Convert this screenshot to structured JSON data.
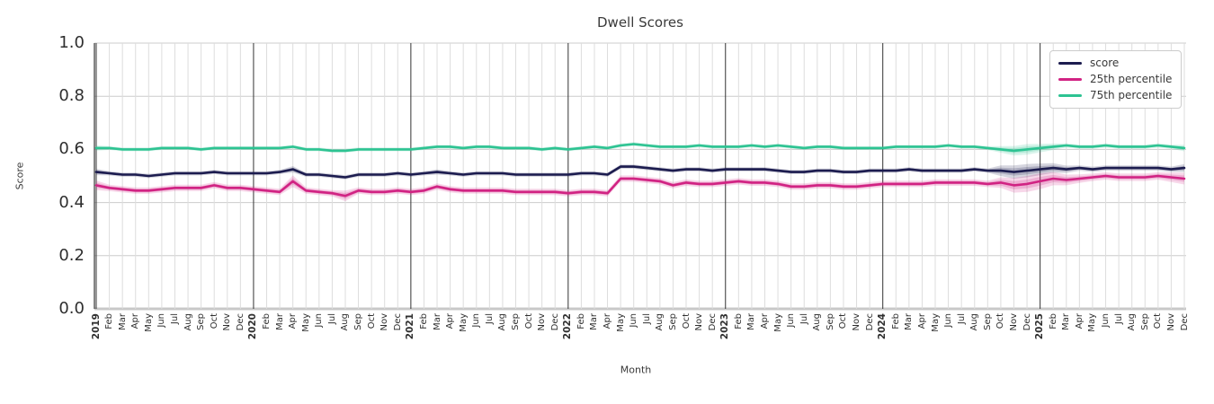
{
  "chart": {
    "title": "Dwell Scores",
    "xlabel": "Month",
    "ylabel": "Score"
  },
  "legend": {
    "items": [
      {
        "label": "score",
        "color": "#1c1c4f"
      },
      {
        "label": "25th percentile",
        "color": "#d12383"
      },
      {
        "label": "75th percentile",
        "color": "#2dc392"
      }
    ]
  },
  "chart_data": {
    "type": "line",
    "title": "Dwell Scores",
    "xlabel": "Month",
    "ylabel": "Score",
    "ylim": [
      0.0,
      1.0
    ],
    "yticks": [
      0.0,
      0.2,
      0.4,
      0.6,
      0.8,
      1.0
    ],
    "grid": true,
    "legend_position": "upper right",
    "x_labels": [
      "2019",
      "Feb",
      "Mar",
      "Apr",
      "May",
      "Jun",
      "Jul",
      "Aug",
      "Sep",
      "Oct",
      "Nov",
      "Dec",
      "2020",
      "Feb",
      "Mar",
      "Apr",
      "May",
      "Jun",
      "Jul",
      "Aug",
      "Sep",
      "Oct",
      "Nov",
      "Dec",
      "2021",
      "Feb",
      "Mar",
      "Apr",
      "May",
      "Jun",
      "Jul",
      "Aug",
      "Sep",
      "Oct",
      "Nov",
      "Dec",
      "2022",
      "Feb",
      "Mar",
      "Apr",
      "May",
      "Jun",
      "Jul",
      "Aug",
      "Sep",
      "Oct",
      "Nov",
      "Dec",
      "2023",
      "Feb",
      "Mar",
      "Apr",
      "May",
      "Jun",
      "Jul",
      "Aug",
      "Sep",
      "Oct",
      "Nov",
      "Dec",
      "2024",
      "Feb",
      "Mar",
      "Apr",
      "May",
      "Jun",
      "Jul",
      "Aug",
      "Sep",
      "Oct",
      "Nov",
      "Dec",
      "2025",
      "Feb",
      "Mar",
      "Apr",
      "May",
      "Jun",
      "Jul",
      "Aug",
      "Sep",
      "Oct",
      "Nov",
      "Dec"
    ],
    "series": [
      {
        "name": "score",
        "color": "#1c1c4f",
        "values": [
          0.515,
          0.51,
          0.505,
          0.505,
          0.5,
          0.505,
          0.51,
          0.51,
          0.51,
          0.515,
          0.51,
          0.51,
          0.51,
          0.51,
          0.515,
          0.525,
          0.505,
          0.505,
          0.5,
          0.495,
          0.505,
          0.505,
          0.505,
          0.51,
          0.505,
          0.51,
          0.515,
          0.51,
          0.505,
          0.51,
          0.51,
          0.51,
          0.505,
          0.505,
          0.505,
          0.505,
          0.505,
          0.51,
          0.51,
          0.505,
          0.535,
          0.535,
          0.53,
          0.525,
          0.52,
          0.525,
          0.525,
          0.52,
          0.525,
          0.525,
          0.525,
          0.525,
          0.52,
          0.515,
          0.515,
          0.52,
          0.52,
          0.515,
          0.515,
          0.52,
          0.52,
          0.52,
          0.525,
          0.52,
          0.52,
          0.52,
          0.52,
          0.525,
          0.52,
          0.52,
          0.515,
          0.52,
          0.525,
          0.53,
          0.525,
          0.53,
          0.525,
          0.53,
          0.53,
          0.53,
          0.53,
          0.53,
          0.525,
          0.53
        ],
        "band": [
          0.012,
          0.008,
          0.008,
          0.008,
          0.008,
          0.008,
          0.008,
          0.008,
          0.008,
          0.008,
          0.008,
          0.008,
          0.008,
          0.008,
          0.008,
          0.012,
          0.008,
          0.008,
          0.008,
          0.008,
          0.008,
          0.008,
          0.008,
          0.008,
          0.008,
          0.008,
          0.01,
          0.008,
          0.008,
          0.008,
          0.008,
          0.008,
          0.008,
          0.008,
          0.008,
          0.008,
          0.008,
          0.008,
          0.008,
          0.008,
          0.008,
          0.008,
          0.008,
          0.008,
          0.008,
          0.008,
          0.008,
          0.008,
          0.008,
          0.008,
          0.008,
          0.008,
          0.008,
          0.008,
          0.008,
          0.008,
          0.008,
          0.008,
          0.008,
          0.008,
          0.008,
          0.008,
          0.008,
          0.008,
          0.008,
          0.008,
          0.008,
          0.008,
          0.008,
          0.02,
          0.025,
          0.025,
          0.022,
          0.018,
          0.014,
          0.01,
          0.01,
          0.01,
          0.01,
          0.01,
          0.01,
          0.01,
          0.01,
          0.015
        ]
      },
      {
        "name": "25th percentile",
        "color": "#d12383",
        "values": [
          0.465,
          0.455,
          0.45,
          0.445,
          0.445,
          0.45,
          0.455,
          0.455,
          0.455,
          0.465,
          0.455,
          0.455,
          0.45,
          0.445,
          0.44,
          0.48,
          0.445,
          0.44,
          0.435,
          0.425,
          0.445,
          0.44,
          0.44,
          0.445,
          0.44,
          0.445,
          0.46,
          0.45,
          0.445,
          0.445,
          0.445,
          0.445,
          0.44,
          0.44,
          0.44,
          0.44,
          0.435,
          0.44,
          0.44,
          0.435,
          0.49,
          0.49,
          0.485,
          0.48,
          0.465,
          0.475,
          0.47,
          0.47,
          0.475,
          0.48,
          0.475,
          0.475,
          0.47,
          0.46,
          0.46,
          0.465,
          0.465,
          0.46,
          0.46,
          0.465,
          0.47,
          0.47,
          0.47,
          0.47,
          0.475,
          0.475,
          0.475,
          0.475,
          0.47,
          0.475,
          0.465,
          0.47,
          0.48,
          0.49,
          0.485,
          0.49,
          0.495,
          0.5,
          0.495,
          0.495,
          0.495,
          0.5,
          0.495,
          0.49
        ],
        "band": [
          0.018,
          0.012,
          0.012,
          0.012,
          0.012,
          0.012,
          0.012,
          0.012,
          0.012,
          0.012,
          0.012,
          0.012,
          0.012,
          0.012,
          0.012,
          0.022,
          0.012,
          0.012,
          0.012,
          0.02,
          0.012,
          0.012,
          0.012,
          0.012,
          0.012,
          0.012,
          0.012,
          0.012,
          0.012,
          0.012,
          0.012,
          0.012,
          0.012,
          0.012,
          0.012,
          0.012,
          0.012,
          0.012,
          0.012,
          0.012,
          0.012,
          0.012,
          0.012,
          0.012,
          0.012,
          0.012,
          0.012,
          0.012,
          0.012,
          0.012,
          0.012,
          0.012,
          0.012,
          0.012,
          0.012,
          0.012,
          0.012,
          0.012,
          0.012,
          0.012,
          0.012,
          0.012,
          0.012,
          0.012,
          0.012,
          0.012,
          0.012,
          0.012,
          0.012,
          0.02,
          0.028,
          0.03,
          0.03,
          0.025,
          0.02,
          0.016,
          0.014,
          0.014,
          0.014,
          0.014,
          0.014,
          0.014,
          0.018,
          0.022
        ]
      },
      {
        "name": "75th percentile",
        "color": "#2dc392",
        "values": [
          0.605,
          0.605,
          0.6,
          0.6,
          0.6,
          0.605,
          0.605,
          0.605,
          0.6,
          0.605,
          0.605,
          0.605,
          0.605,
          0.605,
          0.605,
          0.61,
          0.6,
          0.6,
          0.595,
          0.595,
          0.6,
          0.6,
          0.6,
          0.6,
          0.6,
          0.605,
          0.61,
          0.61,
          0.605,
          0.61,
          0.61,
          0.605,
          0.605,
          0.605,
          0.6,
          0.605,
          0.6,
          0.605,
          0.61,
          0.605,
          0.615,
          0.62,
          0.615,
          0.61,
          0.61,
          0.61,
          0.615,
          0.61,
          0.61,
          0.61,
          0.615,
          0.61,
          0.615,
          0.61,
          0.605,
          0.61,
          0.61,
          0.605,
          0.605,
          0.605,
          0.605,
          0.61,
          0.61,
          0.61,
          0.61,
          0.615,
          0.61,
          0.61,
          0.605,
          0.6,
          0.595,
          0.6,
          0.605,
          0.61,
          0.615,
          0.61,
          0.61,
          0.615,
          0.61,
          0.61,
          0.61,
          0.615,
          0.61,
          0.605
        ],
        "band": [
          0.01,
          0.007,
          0.007,
          0.007,
          0.007,
          0.007,
          0.007,
          0.007,
          0.007,
          0.007,
          0.007,
          0.007,
          0.007,
          0.007,
          0.007,
          0.007,
          0.007,
          0.007,
          0.007,
          0.007,
          0.007,
          0.007,
          0.007,
          0.007,
          0.007,
          0.007,
          0.007,
          0.007,
          0.007,
          0.007,
          0.007,
          0.007,
          0.007,
          0.007,
          0.007,
          0.007,
          0.007,
          0.007,
          0.007,
          0.007,
          0.007,
          0.007,
          0.007,
          0.007,
          0.007,
          0.007,
          0.007,
          0.007,
          0.007,
          0.007,
          0.007,
          0.007,
          0.007,
          0.007,
          0.007,
          0.007,
          0.007,
          0.007,
          0.007,
          0.007,
          0.007,
          0.007,
          0.007,
          0.007,
          0.007,
          0.007,
          0.007,
          0.007,
          0.007,
          0.012,
          0.018,
          0.02,
          0.016,
          0.012,
          0.008,
          0.008,
          0.008,
          0.008,
          0.008,
          0.008,
          0.008,
          0.008,
          0.008,
          0.012
        ]
      }
    ]
  }
}
